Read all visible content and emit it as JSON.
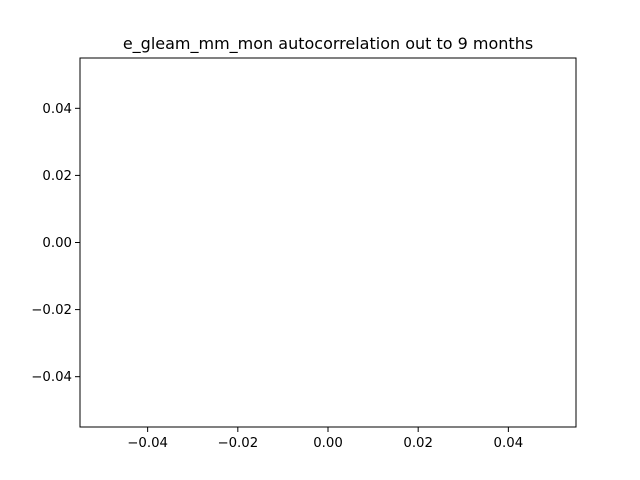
{
  "chart_data": {
    "type": "line",
    "title": "e_gleam_mm_mon autocorrelation out to 9 months",
    "xlabel": "",
    "ylabel": "",
    "xlim": [
      -0.055,
      0.055
    ],
    "ylim": [
      -0.055,
      0.055
    ],
    "x_ticks": [
      "−0.04",
      "−0.02",
      "0.00",
      "0.02",
      "0.04"
    ],
    "y_ticks": [
      "0.04",
      "0.02",
      "0.00",
      "−0.02",
      "−0.04"
    ],
    "series": [],
    "grid": false,
    "legend": "none"
  }
}
